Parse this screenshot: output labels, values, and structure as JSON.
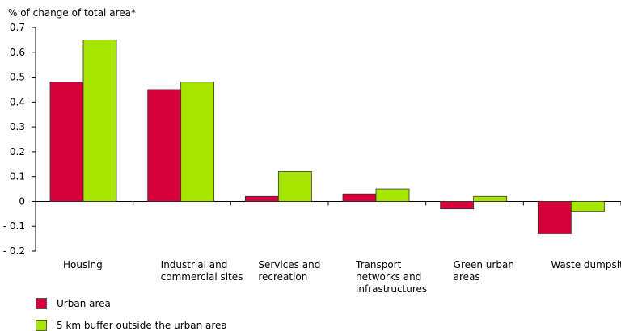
{
  "chart_data": {
    "type": "bar",
    "ylabel": "% of change of total area*",
    "ylim": [
      -0.2,
      0.7
    ],
    "yticks": [
      {
        "value": 0.7,
        "label": "0.7"
      },
      {
        "value": 0.6,
        "label": "0.6"
      },
      {
        "value": 0.5,
        "label": "0.5"
      },
      {
        "value": 0.4,
        "label": "0.4"
      },
      {
        "value": 0.3,
        "label": "0.3"
      },
      {
        "value": 0.2,
        "label": "0.2"
      },
      {
        "value": 0.1,
        "label": "0.1"
      },
      {
        "value": 0,
        "label": "0"
      },
      {
        "value": -0.1,
        "label": "- 0.1"
      },
      {
        "value": -0.2,
        "label": "- 0.2"
      }
    ],
    "categories": [
      "Housing",
      "Industrial and commercial sites",
      "Services and recreation",
      "Transport networks and infrastructures",
      "Green urban areas",
      "Waste dumpsites"
    ],
    "category_label_lines": [
      [
        "Housing"
      ],
      [
        "Industrial and",
        "commercial sites"
      ],
      [
        "Services and",
        "recreation"
      ],
      [
        "Transport",
        "networks and",
        "infrastructures"
      ],
      [
        "Green urban",
        "areas"
      ],
      [
        "Waste dumpsites"
      ]
    ],
    "series": [
      {
        "name": "Urban area",
        "color": "#d6003a",
        "values": [
          0.48,
          0.45,
          0.02,
          0.03,
          -0.03,
          -0.13
        ]
      },
      {
        "name": "5 km buffer outside the urban area",
        "color": "#a6e600",
        "values": [
          0.65,
          0.48,
          0.12,
          0.05,
          0.02,
          -0.04
        ]
      }
    ],
    "legend_position": "bottom-left",
    "grid": false
  }
}
